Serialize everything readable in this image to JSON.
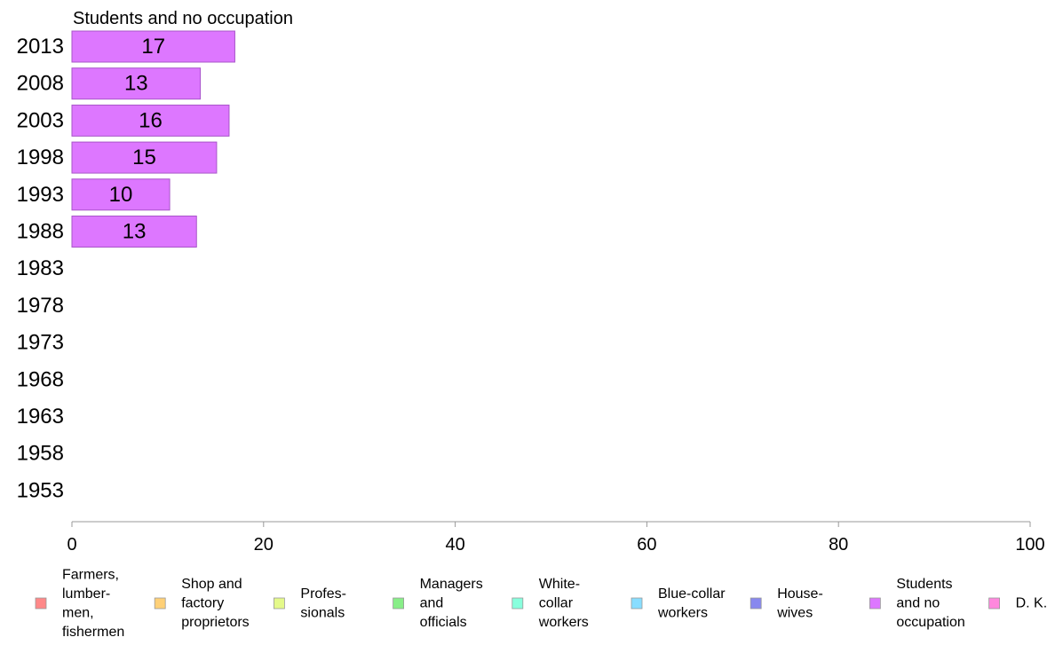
{
  "chart_data": {
    "type": "bar",
    "orientation": "horizontal",
    "title": "Students and no occupation",
    "xlabel": "",
    "ylabel": "",
    "xlim": [
      0,
      100
    ],
    "xticks": [
      "0",
      "20",
      "40",
      "60",
      "80",
      "100"
    ],
    "categories": [
      "2013",
      "2008",
      "2003",
      "1998",
      "1993",
      "1988",
      "1983",
      "1978",
      "1973",
      "1968",
      "1963",
      "1958",
      "1953"
    ],
    "values": [
      17,
      13.4,
      16.4,
      15.1,
      10.2,
      13,
      null,
      null,
      null,
      null,
      null,
      null,
      null
    ],
    "data_labels": [
      "17",
      "13",
      "16",
      "15",
      "10",
      "13",
      "",
      "",
      "",
      "",
      "",
      "",
      ""
    ],
    "bar_color": "#dd77ff",
    "grid": false,
    "legend_position": "bottom",
    "legend": [
      {
        "lines": [
          "Farmers,",
          "lumber-",
          "men,",
          "fishermen"
        ],
        "color": "#ff8888"
      },
      {
        "lines": [
          "Shop and",
          "factory",
          "proprietors"
        ],
        "color": "#ffd077"
      },
      {
        "lines": [
          "Profes-",
          "sionals"
        ],
        "color": "#e4f98a"
      },
      {
        "lines": [
          "Managers",
          "and",
          "officials"
        ],
        "color": "#88ee88"
      },
      {
        "lines": [
          "White-",
          "collar",
          "workers"
        ],
        "color": "#88ffdd"
      },
      {
        "lines": [
          "Blue-collar",
          "workers"
        ],
        "color": "#88ddff"
      },
      {
        "lines": [
          "House-",
          "wives"
        ],
        "color": "#8888ee"
      },
      {
        "lines": [
          "Students",
          "and no",
          "occupation"
        ],
        "color": "#dd77ff"
      },
      {
        "lines": [
          "D. K."
        ],
        "color": "#ff88dd"
      }
    ]
  }
}
